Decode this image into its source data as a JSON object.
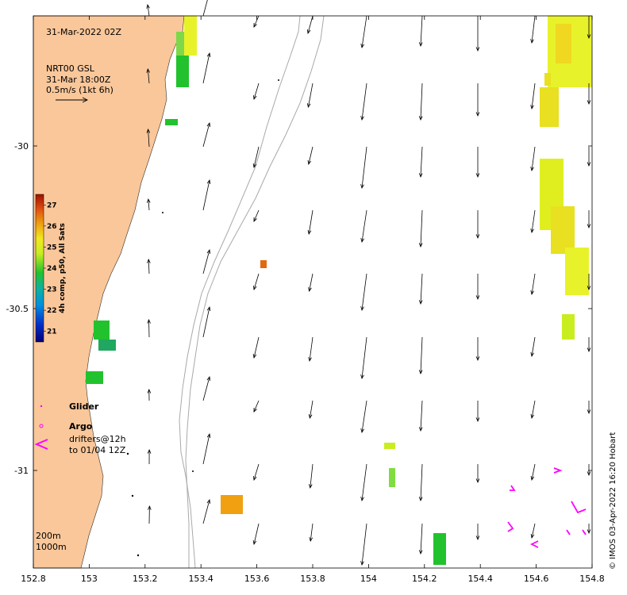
{
  "map": {
    "timestamp": "31-Mar-2022 02Z",
    "current_label": {
      "line1": "NRT00 GSL",
      "line2": "31-Mar 18:00Z",
      "line3": "0.5m/s (1kt 6h)"
    },
    "colorbar": {
      "title": "4h comp, p50, All Sats",
      "ticks": [
        "27",
        "26",
        "25",
        "24",
        "23",
        "22",
        "21"
      ],
      "min": 20.5,
      "max": 27.5
    },
    "legend": {
      "glider": "Glider",
      "argo": "Argo",
      "drifters_line1": "drifters@12h",
      "drifters_line2": "to 01/04 12Z"
    },
    "isobaths": {
      "shallow": "200m",
      "deep": "1000m"
    },
    "credit": "© IMOS 03-Apr-2022 16:20 Hobart",
    "x_axis": {
      "ticks": [
        "152.8",
        "153",
        "153.2",
        "153.4",
        "153.6",
        "153.8",
        "154",
        "154.2",
        "154.4",
        "154.6",
        "154.8"
      ]
    },
    "y_axis": {
      "ticks": [
        "-30",
        "-30.5",
        "-31"
      ]
    },
    "colors": {
      "land": "#f9c79a",
      "sst_green": "#22c22e",
      "sst_yellow": "#e8f22a",
      "sst_orange": "#f0a010",
      "drifter": "#ff00ff"
    }
  }
}
